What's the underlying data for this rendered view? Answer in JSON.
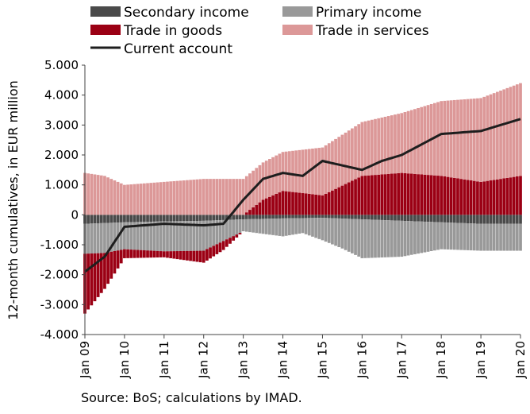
{
  "chart_data": {
    "type": "bar",
    "stacked": true,
    "ylabel": "12-month cumulatives, in EUR million",
    "ylim": [
      -4000,
      5000
    ],
    "yticks": [
      5000,
      4000,
      3000,
      2000,
      1000,
      0,
      -1000,
      -2000,
      -3000,
      -4000
    ],
    "ytick_labels": [
      "5.000",
      "4.000",
      "3.000",
      "2.000",
      "1.000",
      "0",
      "-1.000",
      "-2.000",
      "-3.000",
      "-4.000"
    ],
    "xtick_labels": [
      "Jan 09",
      "Jan 10",
      "Jan 11",
      "Jan 12",
      "Jan 13",
      "Jan 14",
      "Jan 15",
      "Jan 16",
      "Jan 17",
      "Jan 18",
      "Jan 19",
      "Jan 20"
    ],
    "legend_position": "top",
    "grid": false,
    "source": "Source: BoS; calculations by IMAD.",
    "months_start": "2009-01",
    "months_end": "2020-01",
    "series": [
      {
        "name": "Secondary income",
        "color": "#4a4a4a",
        "keyframes": [
          [
            0,
            -300
          ],
          [
            12,
            -250
          ],
          [
            24,
            -220
          ],
          [
            36,
            -200
          ],
          [
            48,
            -150
          ],
          [
            60,
            -120
          ],
          [
            72,
            -100
          ],
          [
            84,
            -150
          ],
          [
            96,
            -200
          ],
          [
            108,
            -250
          ],
          [
            120,
            -300
          ],
          [
            132,
            -300
          ]
        ]
      },
      {
        "name": "Primary income",
        "color": "#999999",
        "keyframes": [
          [
            0,
            -1000
          ],
          [
            6,
            -1000
          ],
          [
            12,
            -900
          ],
          [
            24,
            -1000
          ],
          [
            36,
            -1000
          ],
          [
            48,
            -400
          ],
          [
            60,
            -600
          ],
          [
            66,
            -500
          ],
          [
            78,
            -1000
          ],
          [
            84,
            -1300
          ],
          [
            96,
            -1200
          ],
          [
            108,
            -900
          ],
          [
            120,
            -900
          ],
          [
            132,
            -900
          ]
        ]
      },
      {
        "name": "Trade in goods",
        "color": "#9b0014",
        "keyframes": [
          [
            0,
            -2000
          ],
          [
            6,
            -1200
          ],
          [
            12,
            -300
          ],
          [
            24,
            -200
          ],
          [
            36,
            -400
          ],
          [
            42,
            -300
          ],
          [
            48,
            0
          ],
          [
            54,
            500
          ],
          [
            60,
            800
          ],
          [
            72,
            650
          ],
          [
            84,
            1300
          ],
          [
            96,
            1400
          ],
          [
            108,
            1300
          ],
          [
            120,
            1100
          ],
          [
            132,
            1300
          ]
        ]
      },
      {
        "name": "Trade in services",
        "color": "#dc9898",
        "keyframes": [
          [
            0,
            1400
          ],
          [
            6,
            1300
          ],
          [
            12,
            1000
          ],
          [
            24,
            1100
          ],
          [
            36,
            1200
          ],
          [
            48,
            1200
          ],
          [
            60,
            1300
          ],
          [
            72,
            1600
          ],
          [
            84,
            1800
          ],
          [
            96,
            2000
          ],
          [
            108,
            2500
          ],
          [
            120,
            2800
          ],
          [
            132,
            3100
          ]
        ]
      },
      {
        "name": "Current account",
        "color": "#1e1e1e",
        "type": "line",
        "keyframes": [
          [
            0,
            -1900
          ],
          [
            6,
            -1400
          ],
          [
            12,
            -400
          ],
          [
            24,
            -300
          ],
          [
            36,
            -350
          ],
          [
            42,
            -300
          ],
          [
            48,
            500
          ],
          [
            54,
            1200
          ],
          [
            60,
            1400
          ],
          [
            66,
            1300
          ],
          [
            72,
            1800
          ],
          [
            84,
            1500
          ],
          [
            90,
            1800
          ],
          [
            96,
            2000
          ],
          [
            108,
            2700
          ],
          [
            120,
            2800
          ],
          [
            132,
            3200
          ]
        ]
      }
    ]
  }
}
